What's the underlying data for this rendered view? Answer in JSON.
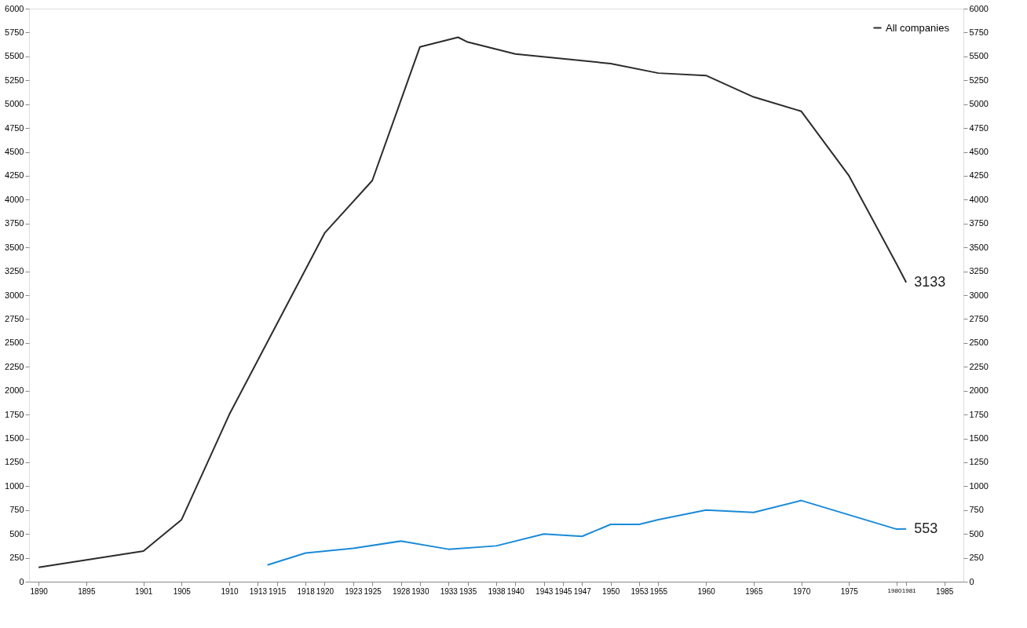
{
  "chart_data": {
    "type": "line",
    "xlim": [
      1889,
      1987
    ],
    "xticks": [
      1890,
      1895,
      1901,
      1905,
      1910,
      1913,
      1915,
      1918,
      1920,
      1923,
      1925,
      1928,
      1930,
      1933,
      1935,
      1938,
      1940,
      1943,
      1945,
      1947,
      1950,
      1953,
      1955,
      1960,
      1965,
      1970,
      1975,
      1980,
      1981,
      1985
    ],
    "ylim": [
      0,
      6000
    ],
    "yticks": [
      0,
      250,
      500,
      750,
      1000,
      1250,
      1500,
      1750,
      2000,
      2250,
      2500,
      2750,
      3000,
      3250,
      3500,
      3750,
      4000,
      4250,
      4500,
      4750,
      5000,
      5250,
      5500,
      5750,
      6000
    ],
    "y2lim": [
      0,
      6000
    ],
    "y2ticks": [
      0,
      250,
      500,
      750,
      1000,
      1250,
      1500,
      1750,
      2000,
      2250,
      2500,
      2750,
      3000,
      3250,
      3500,
      3750,
      4000,
      4250,
      4500,
      4750,
      5000,
      5250,
      5500,
      5750,
      6000
    ],
    "series": [
      {
        "name": "All companies",
        "color": "#2b2b2b",
        "x": [
          1890,
          1901,
          1905,
          1910,
          1920,
          1925,
          1930,
          1934,
          1935,
          1940,
          1950,
          1955,
          1960,
          1965,
          1970,
          1975,
          1980,
          1981
        ],
        "values": [
          150,
          320,
          650,
          1750,
          3650,
          4200,
          5600,
          5700,
          5650,
          5525,
          5425,
          5325,
          5300,
          5075,
          4925,
          4250,
          3325,
          3133
        ]
      },
      {
        "color": "#1a8ad8",
        "x": [
          1914,
          1918,
          1923,
          1928,
          1933,
          1938,
          1943,
          1947,
          1950,
          1953,
          1955,
          1960,
          1965,
          1970,
          1975,
          1980,
          1981
        ],
        "values": [
          175,
          300,
          350,
          425,
          340,
          375,
          500,
          475,
          600,
          600,
          650,
          750,
          725,
          850,
          700,
          550,
          553
        ]
      }
    ],
    "annotations": [
      {
        "text": "3133",
        "x": 1981,
        "y": 3133
      },
      {
        "text": "553",
        "x": 1981,
        "y": 553
      }
    ],
    "legend": "top right",
    "grid": false
  }
}
